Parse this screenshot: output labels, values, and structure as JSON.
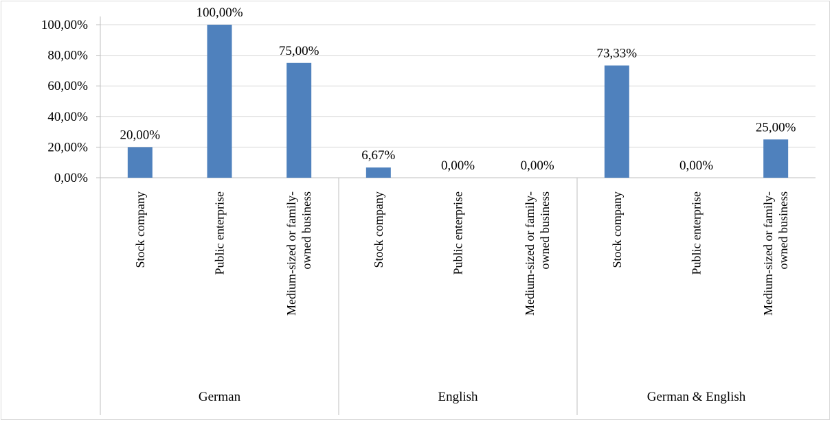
{
  "chart_data": {
    "type": "bar",
    "groups": [
      {
        "name": "German",
        "categories": [
          [
            "Stock company"
          ],
          [
            "Public enterprise"
          ],
          [
            "Medium-sized or family-",
            "owned business"
          ]
        ],
        "values": [
          20.0,
          100.0,
          75.0
        ],
        "value_labels": [
          "20,00%",
          "100,00%",
          "75,00%"
        ]
      },
      {
        "name": "English",
        "categories": [
          [
            "Stock company"
          ],
          [
            "Public enterprise"
          ],
          [
            "Medium-sized or family-",
            "owned business"
          ]
        ],
        "values": [
          6.67,
          0.0,
          0.0
        ],
        "value_labels": [
          "6,67%",
          "0,00%",
          "0,00%"
        ]
      },
      {
        "name": "German & English",
        "categories": [
          [
            "Stock company"
          ],
          [
            "Public enterprise"
          ],
          [
            "Medium-sized or family-",
            "owned business"
          ]
        ],
        "values": [
          73.33,
          0.0,
          25.0
        ],
        "value_labels": [
          "73,33%",
          "0,00%",
          "25,00%"
        ]
      }
    ],
    "y_ticks": [
      "0,00%",
      "20,00%",
      "40,00%",
      "60,00%",
      "80,00%",
      "100,00%"
    ],
    "ylim": [
      0,
      100
    ],
    "grid": true,
    "legend": "none",
    "bar_color": "#4f81bd",
    "grid_color": "#d9d9d9"
  }
}
